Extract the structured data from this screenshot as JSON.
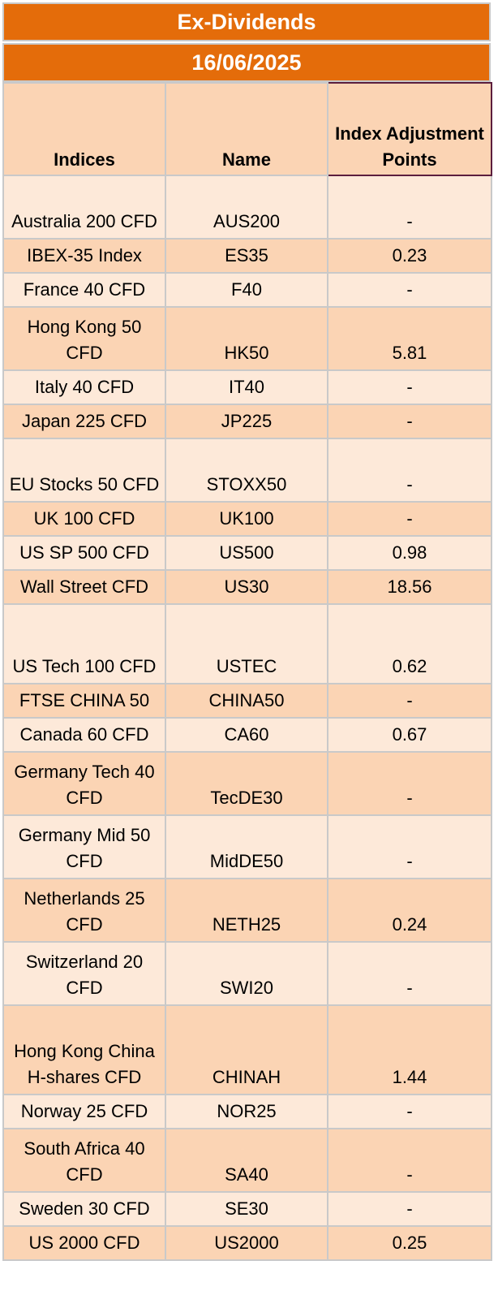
{
  "title": "Ex-Dividends",
  "date": "16/06/2025",
  "columns": [
    "Indices",
    "Name",
    "Index Adjustment Points"
  ],
  "rows": [
    {
      "index": "Australia 200 CFD",
      "name": "AUS200",
      "points": "-"
    },
    {
      "index": "IBEX-35 Index",
      "name": "ES35",
      "points": "0.23"
    },
    {
      "index": "France 40 CFD",
      "name": "F40",
      "points": "-"
    },
    {
      "index": "Hong Kong 50 CFD",
      "name": "HK50",
      "points": "5.81"
    },
    {
      "index": "Italy 40 CFD",
      "name": "IT40",
      "points": "-"
    },
    {
      "index": "Japan 225 CFD",
      "name": "JP225",
      "points": "-"
    },
    {
      "index": "EU Stocks 50 CFD",
      "name": "STOXX50",
      "points": "-"
    },
    {
      "index": "UK 100 CFD",
      "name": "UK100",
      "points": "-"
    },
    {
      "index": "US SP 500 CFD",
      "name": "US500",
      "points": "0.98"
    },
    {
      "index": "Wall Street CFD",
      "name": "US30",
      "points": "18.56"
    },
    {
      "index": "US Tech 100 CFD",
      "name": "USTEC",
      "points": "0.62"
    },
    {
      "index": "FTSE CHINA 50",
      "name": "CHINA50",
      "points": "-"
    },
    {
      "index": "Canada 60 CFD",
      "name": "CA60",
      "points": "0.67"
    },
    {
      "index": "Germany Tech 40 CFD",
      "name": "TecDE30",
      "points": "-"
    },
    {
      "index": "Germany Mid 50 CFD",
      "name": "MidDE50",
      "points": "-"
    },
    {
      "index": "Netherlands 25 CFD",
      "name": "NETH25",
      "points": "0.24"
    },
    {
      "index": "Switzerland 20 CFD",
      "name": "SWI20",
      "points": "-"
    },
    {
      "index": "Hong Kong China H-shares CFD",
      "name": "CHINAH",
      "points": "1.44"
    },
    {
      "index": "Norway 25 CFD",
      "name": "NOR25",
      "points": "-"
    },
    {
      "index": "South Africa 40 CFD",
      "name": "SA40",
      "points": "-"
    },
    {
      "index": "Sweden 30 CFD",
      "name": "SE30",
      "points": "-"
    },
    {
      "index": "US 2000 CFD",
      "name": "US2000",
      "points": "0.25"
    }
  ],
  "colors": {
    "banner": "#e46c0a",
    "row_light": "#fde9d9",
    "row_dark": "#fbd4b4"
  }
}
